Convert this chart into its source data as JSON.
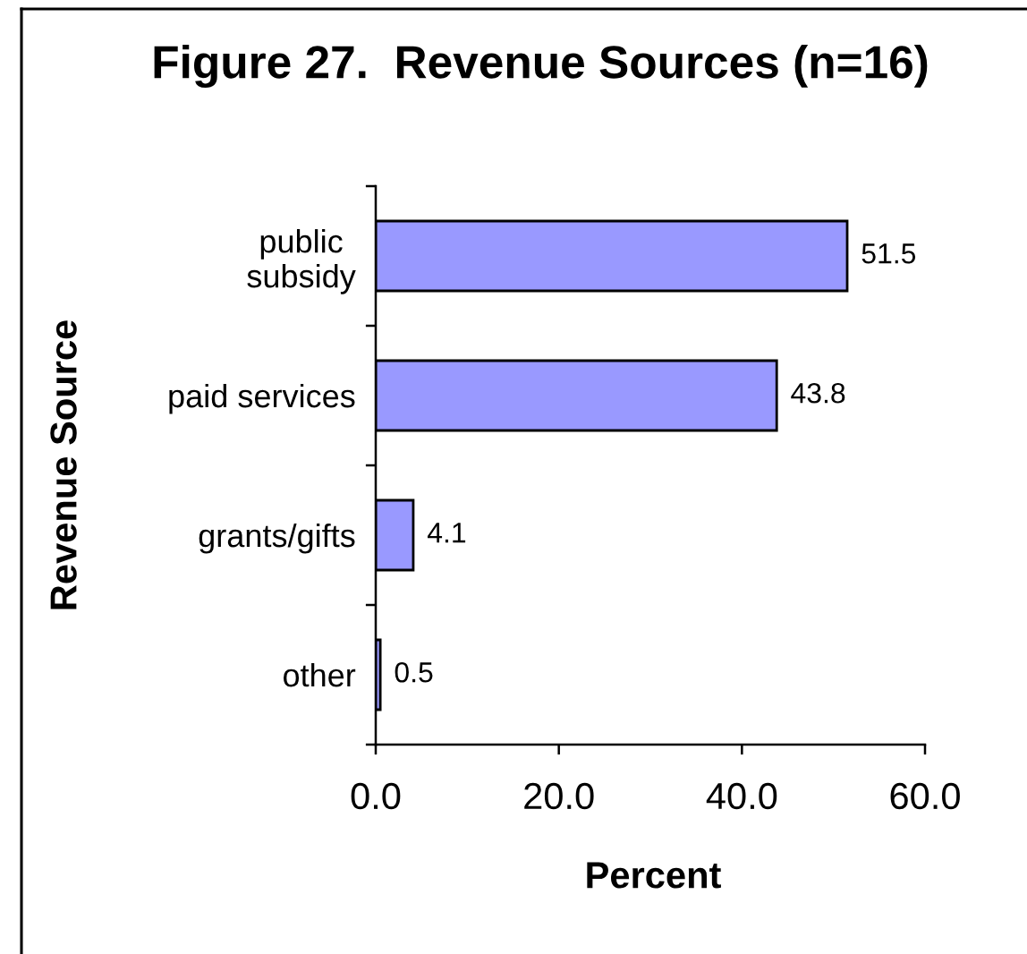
{
  "chart_data": {
    "type": "bar",
    "orientation": "horizontal",
    "title": "Figure 27.  Revenue Sources (n=16)",
    "xlabel": "Percent",
    "ylabel": "Revenue Source",
    "categories": [
      "public\nsubsidy",
      "paid services",
      "grants/gifts",
      "other"
    ],
    "values": [
      51.5,
      43.8,
      4.1,
      0.5
    ],
    "color": "#9999ff",
    "xlim": [
      0,
      60
    ],
    "xticks": [
      {
        "value": 0,
        "label": "0.0"
      },
      {
        "value": 20,
        "label": "20.0"
      },
      {
        "value": 40,
        "label": "40.0"
      },
      {
        "value": 60,
        "label": "60.0"
      }
    ],
    "data_labels": true
  }
}
